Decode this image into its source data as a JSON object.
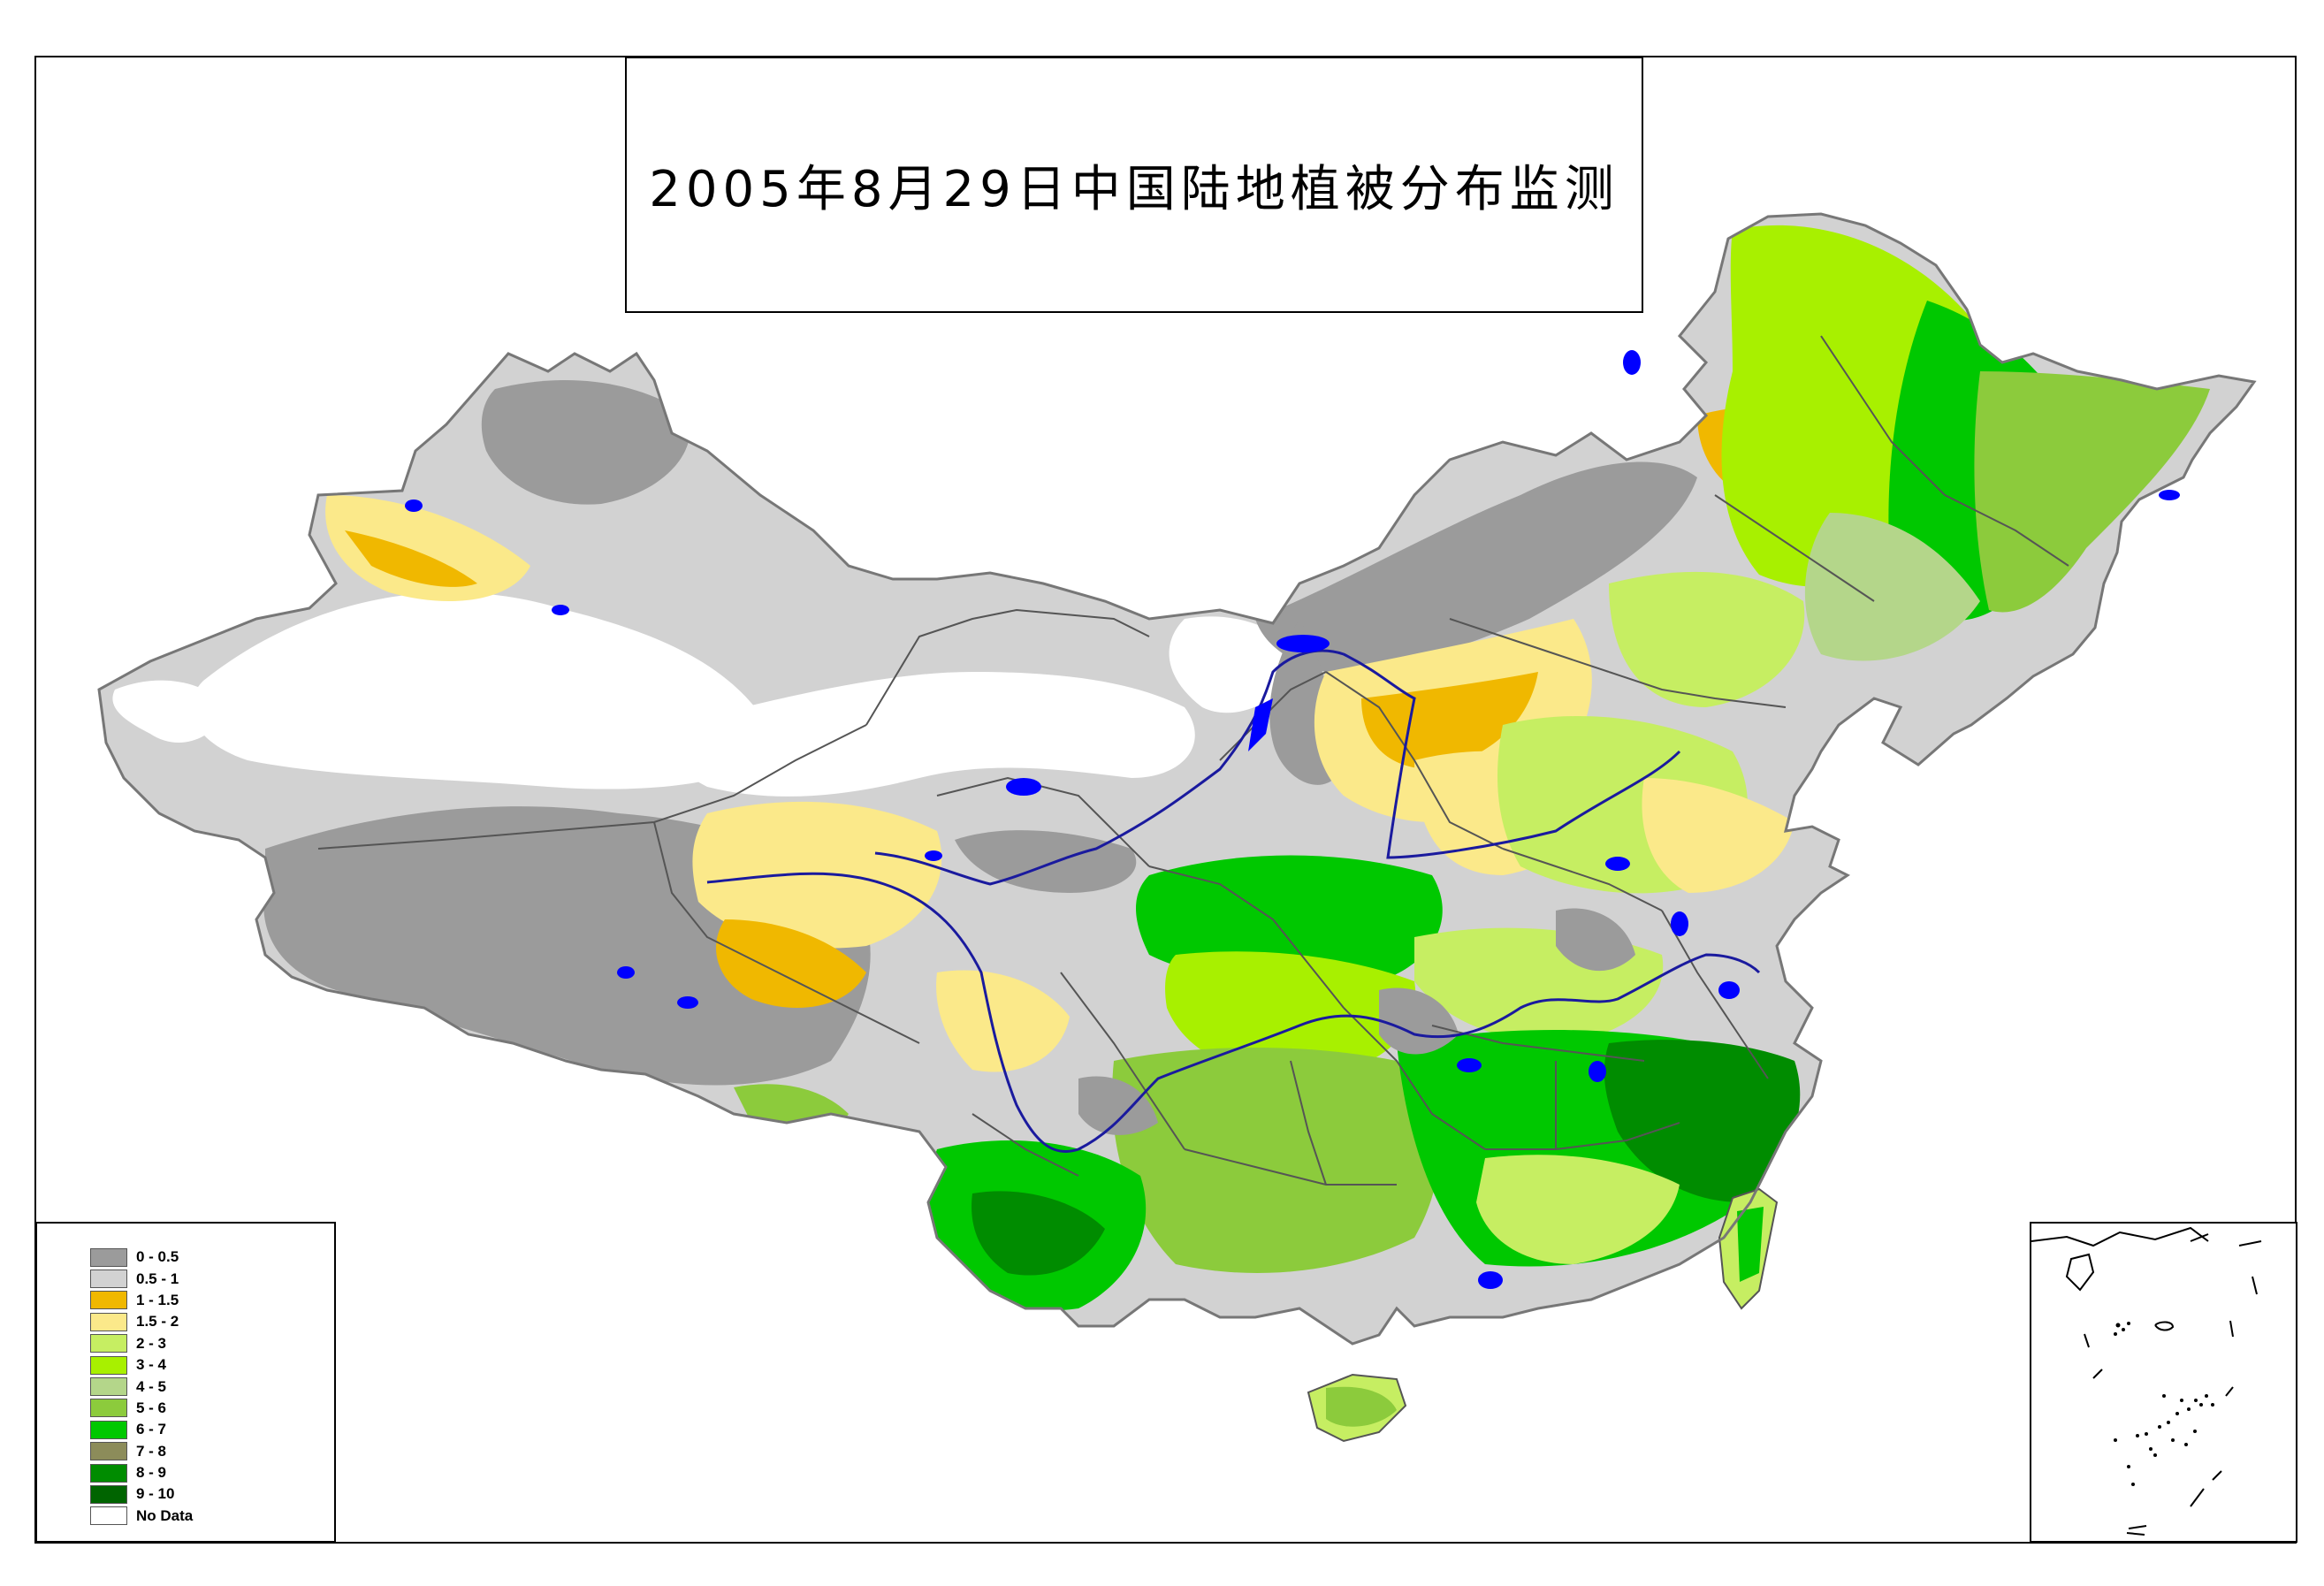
{
  "title": "2005年8月29日中国陆地植被分布监测",
  "legend": {
    "items": [
      {
        "label": "0 - 0.5",
        "color": "#9b9b9b"
      },
      {
        "label": "0.5 - 1",
        "color": "#d2d2d2"
      },
      {
        "label": "1 - 1.5",
        "color": "#f0b800"
      },
      {
        "label": "1.5 - 2",
        "color": "#fbe98a"
      },
      {
        "label": "2 - 3",
        "color": "#c6ee62"
      },
      {
        "label": "3 - 4",
        "color": "#a8f000"
      },
      {
        "label": "4 - 5",
        "color": "#b4d68a"
      },
      {
        "label": "5 - 6",
        "color": "#8ccb3c"
      },
      {
        "label": "6 - 7",
        "color": "#00c800"
      },
      {
        "label": "7 - 8",
        "color": "#8c8c5a"
      },
      {
        "label": "8 - 9",
        "color": "#008c00"
      },
      {
        "label": "9 - 10",
        "color": "#006400"
      },
      {
        "label": "No Data",
        "color": "#ffffff"
      }
    ]
  },
  "colors": {
    "water": "#0000ff",
    "boundary": "#555555",
    "frame": "#000000"
  }
}
